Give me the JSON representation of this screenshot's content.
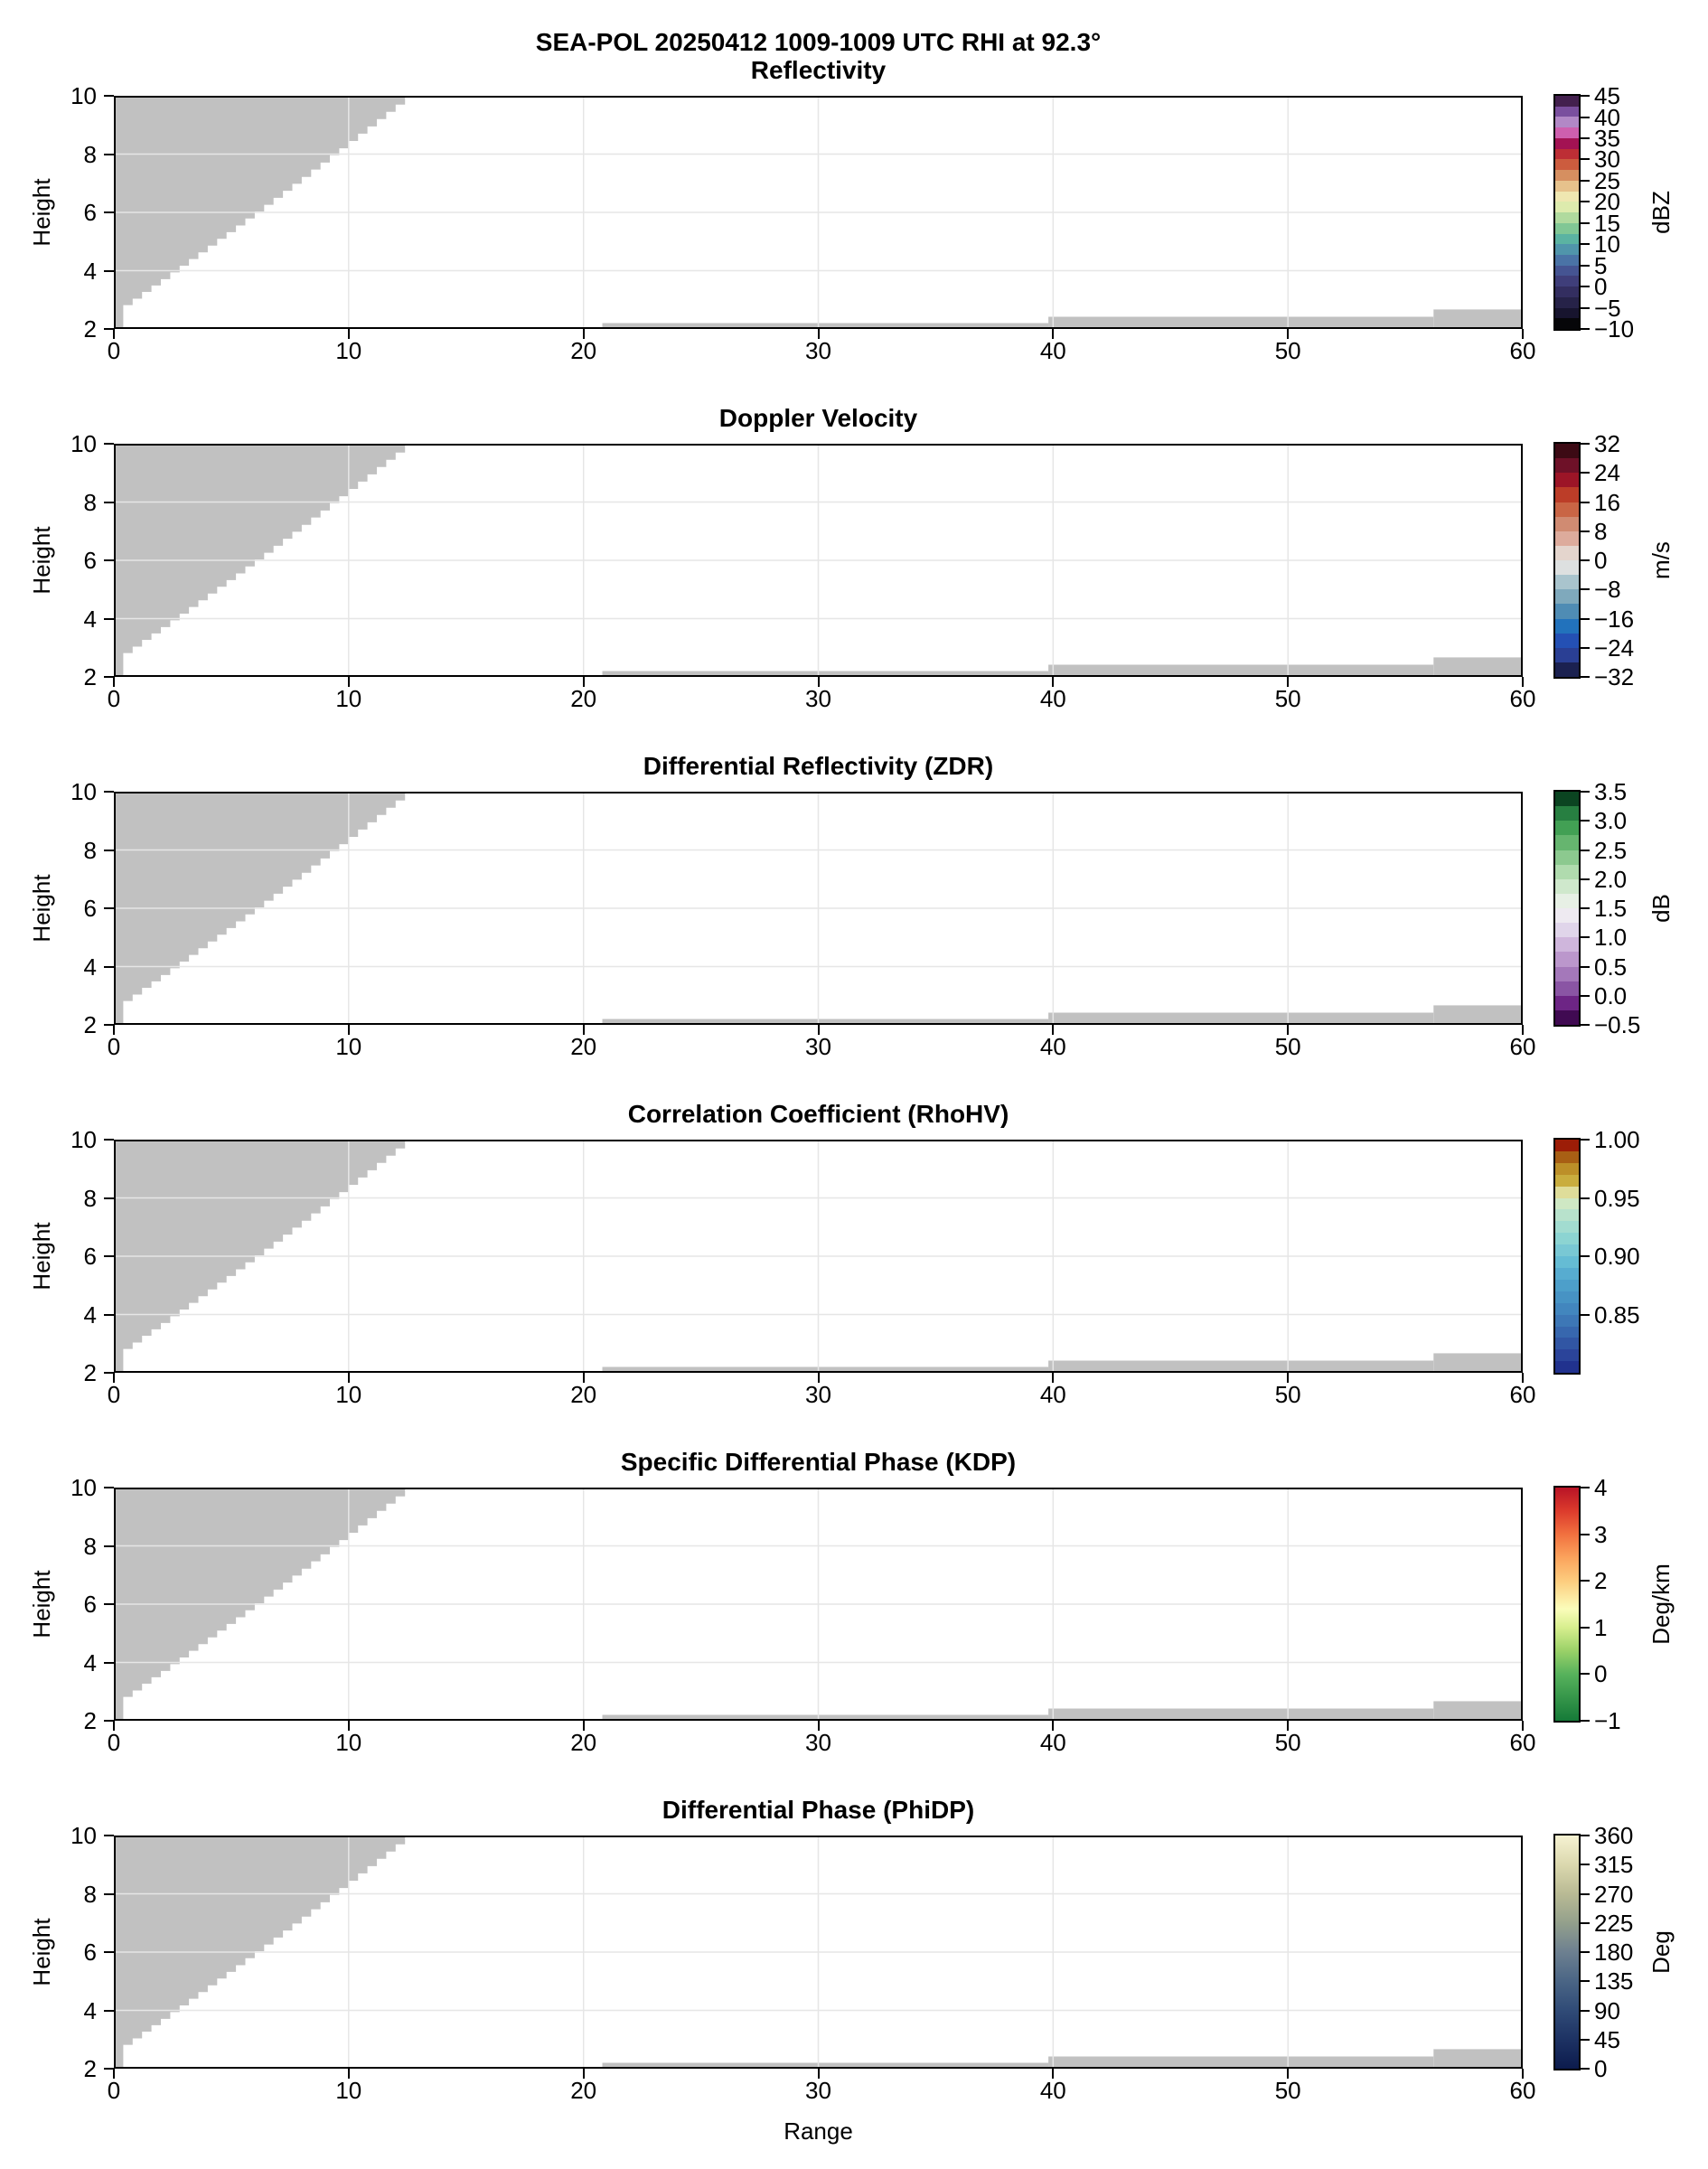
{
  "chart_data": {
    "type": "heatmap",
    "title": "SEA-POL 20250412 1009-1009 UTC RHI at 92.3°",
    "xlabel": "Range",
    "ylabel": "Height",
    "xlim": [
      0,
      60
    ],
    "ylim": [
      2,
      10
    ],
    "x_ticks": [
      0,
      10,
      20,
      30,
      40,
      50,
      60
    ],
    "y_ticks": [
      2,
      4,
      6,
      8,
      10
    ],
    "grid": true,
    "grid_color": "#e6e6e6",
    "no_data_color": "#c1c1c1",
    "no_data_mask": {
      "description": "identical gray no-data regions in all six panels",
      "wedge_step_width": 0.4,
      "wedge_left_column": {
        "x0": 0.0,
        "x1": 0.4,
        "h_bottom": 2.0
      },
      "wedge_steps": [
        [
          0.4,
          2.82
        ],
        [
          0.8,
          3.04
        ],
        [
          1.2,
          3.27
        ],
        [
          1.6,
          3.49
        ],
        [
          2.0,
          3.71
        ],
        [
          2.4,
          3.94
        ],
        [
          2.8,
          4.17
        ],
        [
          3.2,
          4.4
        ],
        [
          3.6,
          4.63
        ],
        [
          4.0,
          4.86
        ],
        [
          4.4,
          5.09
        ],
        [
          4.8,
          5.32
        ],
        [
          5.2,
          5.55
        ],
        [
          5.6,
          5.79
        ],
        [
          6.0,
          6.03
        ],
        [
          6.4,
          6.26
        ],
        [
          6.8,
          6.5
        ],
        [
          7.2,
          6.74
        ],
        [
          7.6,
          6.98
        ],
        [
          8.0,
          7.22
        ],
        [
          8.4,
          7.47
        ],
        [
          8.8,
          7.71
        ],
        [
          9.2,
          7.96
        ],
        [
          9.6,
          8.2
        ],
        [
          10.0,
          8.45
        ],
        [
          10.4,
          8.7
        ],
        [
          10.8,
          8.95
        ],
        [
          11.2,
          9.2
        ],
        [
          11.6,
          9.45
        ],
        [
          12.0,
          9.7
        ],
        [
          12.4,
          9.96
        ],
        [
          12.8,
          10.0
        ]
      ],
      "bottom_strips": [
        {
          "x0": 20.8,
          "x1": 39.8,
          "h_top": 2.2
        },
        {
          "x0": 39.8,
          "x1": 56.2,
          "h_top": 2.42
        },
        {
          "x0": 56.2,
          "x1": 60.0,
          "h_top": 2.67
        }
      ]
    },
    "panels": [
      {
        "title": "Reflectivity",
        "unit": "dBZ",
        "colorbar": {
          "style": "discrete",
          "min": -10,
          "max": 45,
          "tick_values": [
            -10,
            -5,
            0,
            5,
            10,
            15,
            20,
            25,
            30,
            35,
            40,
            45
          ],
          "tick_labels": [
            "−10",
            "−5",
            "0",
            "5",
            "10",
            "15",
            "20",
            "25",
            "30",
            "35",
            "40",
            "45"
          ],
          "colors": [
            "#060609",
            "#17142e",
            "#262248",
            "#332e60",
            "#3f3e7a",
            "#455492",
            "#4a73a6",
            "#5095ab",
            "#5bb3a2",
            "#81c795",
            "#b0da9e",
            "#ddebad",
            "#efe7b1",
            "#e6c28c",
            "#d68f60",
            "#cc5c3e",
            "#bd2e35",
            "#a31253",
            "#ce5fae",
            "#b288c6",
            "#7a4f9e",
            "#43204e"
          ]
        }
      },
      {
        "title": "Doppler Velocity",
        "unit": "m/s",
        "colorbar": {
          "style": "discrete",
          "min": -32,
          "max": 32,
          "tick_values": [
            -32,
            -24,
            -16,
            -8,
            0,
            8,
            16,
            24,
            32
          ],
          "tick_labels": [
            "−32",
            "−24",
            "−16",
            "−8",
            "0",
            "8",
            "16",
            "24",
            "32"
          ],
          "colors": [
            "#1b2150",
            "#2a3f94",
            "#2450b4",
            "#2272bc",
            "#4f8cb4",
            "#7fa9bc",
            "#a9c4cd",
            "#dde0e0",
            "#e4d5cd",
            "#ddab9c",
            "#d08b72",
            "#c96545",
            "#bc3d28",
            "#9c1527",
            "#6e1128",
            "#3c0a14"
          ]
        }
      },
      {
        "title": "Differential Reflectivity (ZDR)",
        "unit": "dB",
        "colorbar": {
          "style": "discrete",
          "min": -0.5,
          "max": 3.5,
          "tick_values": [
            -0.5,
            0.0,
            0.5,
            1.0,
            1.5,
            2.0,
            2.5,
            3.0,
            3.5
          ],
          "tick_labels": [
            "−0.5",
            "0.0",
            "0.5",
            "1.0",
            "1.5",
            "2.0",
            "2.5",
            "3.0",
            "3.5"
          ],
          "colors": [
            "#400a52",
            "#6d2585",
            "#8a55a4",
            "#a478ba",
            "#bb97cc",
            "#cfb6dc",
            "#e0d5ea",
            "#eeeaf1",
            "#e7f0e5",
            "#cfe8cc",
            "#b0dbae",
            "#8cc98f",
            "#66b56f",
            "#42a054",
            "#277f41",
            "#0b4421"
          ]
        }
      },
      {
        "title": "Correlation Coefficient (RhoHV)",
        "unit": "",
        "colorbar": {
          "style": "discrete",
          "min": 0.8,
          "max": 1.0,
          "tick_values": [
            0.85,
            0.9,
            0.95,
            1.0
          ],
          "tick_labels": [
            "0.85",
            "0.90",
            "0.95",
            "1.00"
          ],
          "colors": [
            "#21328e",
            "#2b449a",
            "#3156a4",
            "#3767ae",
            "#3d77b6",
            "#4286be",
            "#4793c4",
            "#4d9fca",
            "#57acd0",
            "#65bcd4",
            "#79c8d4",
            "#8cd4d2",
            "#a2dcd0",
            "#b8e2cc",
            "#cfe8c4",
            "#dfdd9a",
            "#c9ad3e",
            "#bc8f28",
            "#a85f14",
            "#9c1d07"
          ]
        }
      },
      {
        "title": "Specific Differential Phase (KDP)",
        "unit": "Deg/km",
        "colorbar": {
          "style": "gradient",
          "min": -1,
          "max": 4,
          "tick_values": [
            -1,
            0,
            1,
            2,
            3,
            4
          ],
          "tick_labels": [
            "−1",
            "0",
            "1",
            "2",
            "3",
            "4"
          ],
          "gradient": [
            [
              0.0,
              "#157a38"
            ],
            [
              0.2,
              "#57b25c"
            ],
            [
              0.3,
              "#9ad168"
            ],
            [
              0.4,
              "#d7ee8e"
            ],
            [
              0.48,
              "#fbfdba"
            ],
            [
              0.6,
              "#fdcc7e"
            ],
            [
              0.7,
              "#fba35c"
            ],
            [
              0.8,
              "#f1703f"
            ],
            [
              0.9,
              "#dc3b2c"
            ],
            [
              1.0,
              "#b81326"
            ]
          ]
        }
      },
      {
        "title": "Differential Phase (PhiDP)",
        "unit": "Deg",
        "colorbar": {
          "style": "gradient",
          "min": 0,
          "max": 360,
          "tick_values": [
            0,
            45,
            90,
            135,
            180,
            225,
            270,
            315,
            360
          ],
          "tick_labels": [
            "0",
            "45",
            "90",
            "135",
            "180",
            "225",
            "270",
            "315",
            "360"
          ],
          "gradient": [
            [
              0.0,
              "#0c1b4d"
            ],
            [
              0.125,
              "#1d3263"
            ],
            [
              0.25,
              "#304b77"
            ],
            [
              0.375,
              "#4a6585"
            ],
            [
              0.5,
              "#6d8090"
            ],
            [
              0.625,
              "#93a08c"
            ],
            [
              0.75,
              "#b9ba94"
            ],
            [
              0.875,
              "#dbd8ae"
            ],
            [
              1.0,
              "#f6f2d2"
            ]
          ]
        }
      }
    ]
  }
}
